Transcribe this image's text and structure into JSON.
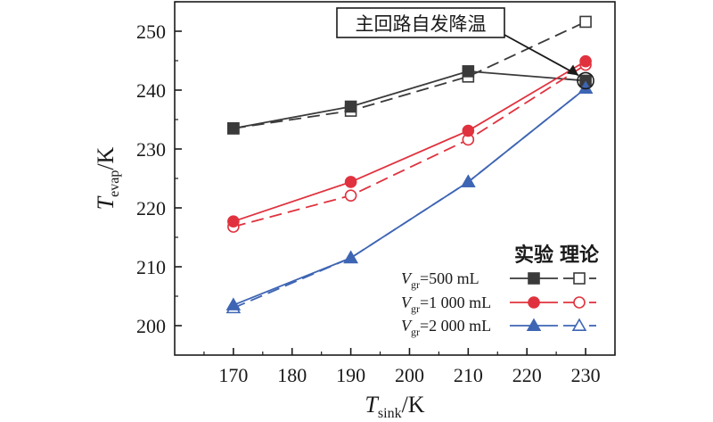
{
  "chart_data": {
    "type": "line",
    "x": [
      170,
      190,
      210,
      230
    ],
    "xlabel": {
      "main": "T",
      "sub": "sink",
      "unit": "/K"
    },
    "ylabel": {
      "main": "T",
      "sub": "evap",
      "unit": "/K"
    },
    "xlim": [
      160,
      235
    ],
    "ylim": [
      195,
      255
    ],
    "xticks": [
      "170",
      "180",
      "190",
      "200",
      "210",
      "220",
      "230"
    ],
    "yticks": [
      "200",
      "210",
      "220",
      "230",
      "240",
      "250"
    ],
    "grid": false,
    "legend_position": "bottom-right",
    "legend_headers": [
      "实验",
      "理论"
    ],
    "series": [
      {
        "volume": "500 mL",
        "experimental": [
          233.5,
          237.2,
          243.2,
          241.6
        ],
        "theoretical": [
          233.5,
          236.5,
          242.3,
          251.6
        ],
        "color": "#3a3a3a"
      },
      {
        "volume": "1 000 mL",
        "experimental": [
          217.7,
          224.4,
          233.1,
          244.9
        ],
        "theoretical": [
          216.8,
          222.1,
          231.6,
          244.3
        ],
        "color": "#e0323e"
      },
      {
        "volume": "2 000 mL",
        "experimental": [
          203.5,
          211.5,
          224.4,
          240.3
        ],
        "theoretical": [
          203.0,
          211.5,
          224.4,
          240.3
        ],
        "color": "#3e65b4"
      }
    ],
    "legend_prefix": {
      "main": "V",
      "sub": "gr",
      "eq": "="
    },
    "annotation": {
      "text": "主回路自发降温",
      "x": 230,
      "y": 241.6
    }
  }
}
